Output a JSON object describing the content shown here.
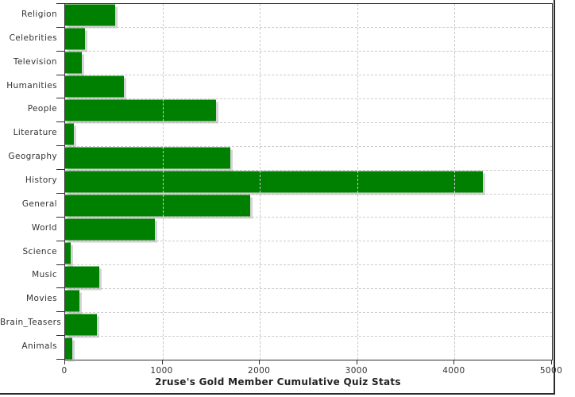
{
  "page": {
    "background": "#ffffff",
    "frame_border_color": "#2a2a2a"
  },
  "chart_data": {
    "type": "bar",
    "orientation": "horizontal",
    "title": "2ruse's Gold Member Cumulative Quiz Stats",
    "categories": [
      "Religion",
      "Celebrities",
      "Television",
      "Humanities",
      "People",
      "Literature",
      "Geography",
      "History",
      "General",
      "World",
      "Science",
      "Music",
      "Movies",
      "Brain_Teasers",
      "Animals"
    ],
    "values": [
      510,
      200,
      175,
      600,
      1550,
      90,
      1700,
      4290,
      1900,
      920,
      60,
      350,
      150,
      325,
      75
    ],
    "xlim": [
      0,
      5000
    ],
    "x_ticks": [
      0,
      1000,
      2000,
      3000,
      4000,
      5000
    ],
    "x_tick_labels": [
      "0",
      "1000",
      "2000",
      "3000",
      "4000",
      "5000"
    ],
    "grid": "dashed",
    "legend": "none",
    "colors": {
      "bar": "#008000",
      "bar_shadow": "#cccccc",
      "grid": "#c9c9c9",
      "axis": "#2f2f2f",
      "category_label": "#333333",
      "tick_label": "#333333",
      "title": "#222222"
    }
  }
}
